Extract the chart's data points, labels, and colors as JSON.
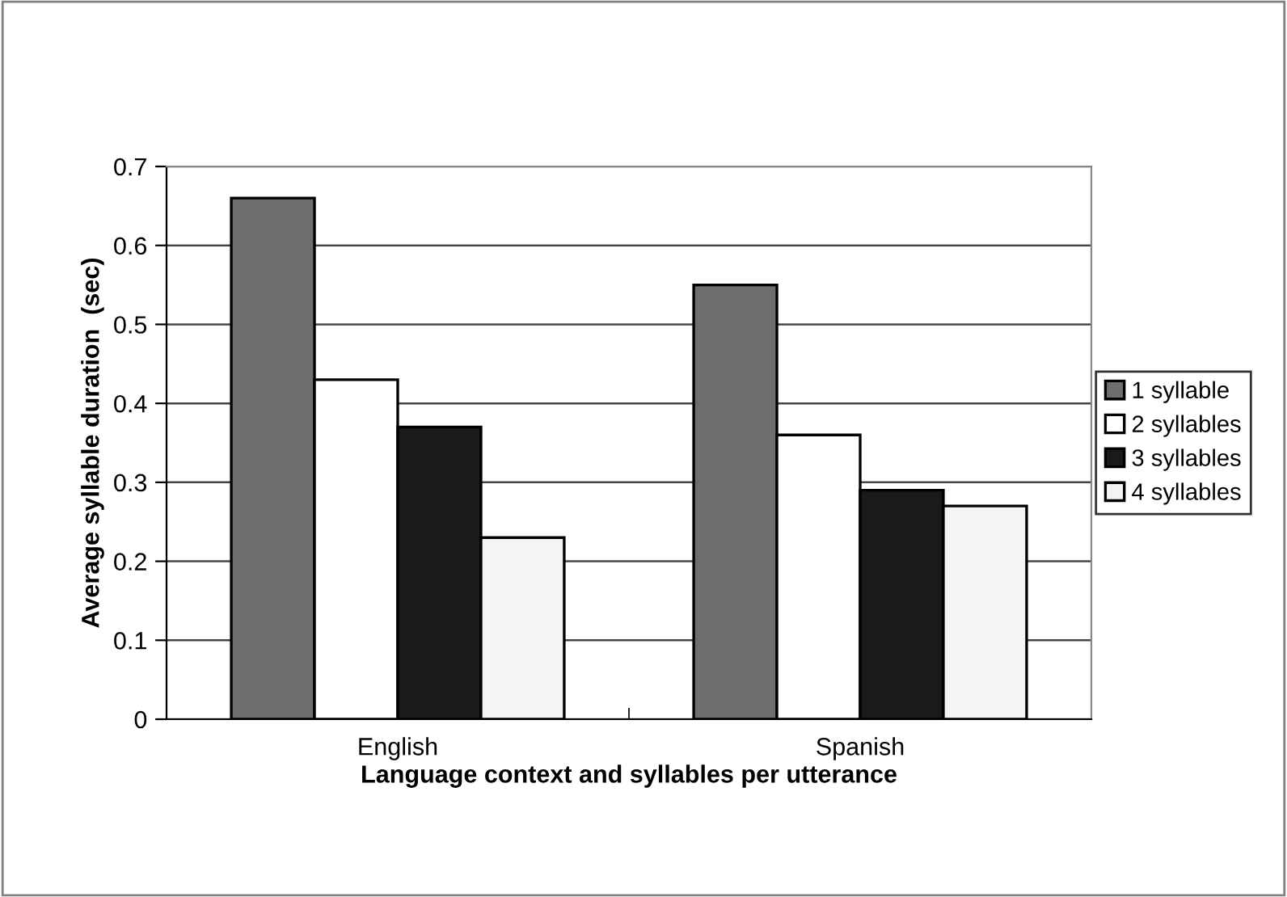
{
  "chart_data": {
    "type": "bar",
    "xlabel": "Language context and syllables per utterance",
    "ylabel": "Average syllable duration  (sec)",
    "categories": [
      "English",
      "Spanish"
    ],
    "series": [
      {
        "name": "1 syllable",
        "color": "#6e6e6e",
        "values": [
          0.66,
          0.55
        ]
      },
      {
        "name": "2 syllables",
        "color": "#ffffff",
        "values": [
          0.43,
          0.36
        ]
      },
      {
        "name": "3 syllables",
        "color": "#1a1a1a",
        "values": [
          0.37,
          0.29
        ]
      },
      {
        "name": "4 syllables",
        "color": "#f4f4f4",
        "values": [
          0.23,
          0.27
        ]
      }
    ],
    "ylim": [
      0,
      0.7
    ],
    "yticks": [
      0,
      0.1,
      0.2,
      0.3,
      0.4,
      0.5,
      0.6,
      0.7
    ],
    "grid": "y",
    "legend": "right"
  }
}
